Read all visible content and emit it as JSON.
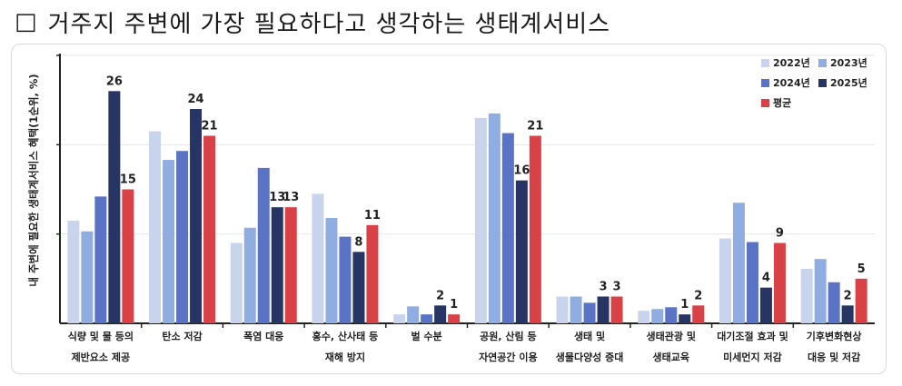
{
  "heading": {
    "box": "□",
    "text": "거주지 주변에 가장 필요하다고 생각하는 생태계서비스"
  },
  "chart_data": {
    "type": "bar",
    "title": "",
    "ylabel": "내 주변에 필요한 생태계서비스 혜택(1순위, %)",
    "ylim": [
      0,
      30
    ],
    "gridlines": [
      10,
      20,
      30
    ],
    "legend_position": "top-right",
    "categories": [
      [
        "식량 및 물 등의",
        "제반요소 제공"
      ],
      [
        "탄소 저감"
      ],
      [
        "폭염 대응"
      ],
      [
        "홍수, 산사태 등",
        "재해 방지"
      ],
      [
        "벌 수분"
      ],
      [
        "공원, 산림 등",
        "자연공간 이용"
      ],
      [
        "생태 및",
        "생물다양성 증대"
      ],
      [
        "생태관광 및",
        "생태교육"
      ],
      [
        "대기조절 효과 및",
        "미세먼지 저감"
      ],
      [
        "기후변화현상",
        "대응 및 저감"
      ]
    ],
    "series": [
      {
        "name": "2022년",
        "color": "#c8d3ec",
        "values": [
          11.5,
          21.5,
          9,
          14.5,
          1,
          23,
          3,
          1.4,
          9.5,
          6.1
        ]
      },
      {
        "name": "2023년",
        "color": "#8fade0",
        "values": [
          10.3,
          18.3,
          10.7,
          11.8,
          1.9,
          23.5,
          3,
          1.6,
          13.5,
          7.2
        ]
      },
      {
        "name": "2024년",
        "color": "#5a73c4",
        "values": [
          14.2,
          19.3,
          17.4,
          9.7,
          1,
          21.3,
          2.3,
          1.8,
          9.1,
          4.6
        ]
      },
      {
        "name": "2025년",
        "color": "#263564",
        "values": [
          26,
          24,
          13,
          8,
          2,
          16,
          3,
          1,
          4,
          2
        ]
      },
      {
        "name": "평균",
        "color": "#d84145",
        "values": [
          15,
          21,
          13,
          11,
          1,
          21,
          3,
          2,
          9,
          5
        ]
      }
    ],
    "data_labels": {
      "2025년": [
        "26",
        "24",
        "13",
        "8",
        "2",
        "16",
        "3",
        "1",
        "4",
        "2"
      ],
      "평균": [
        "15",
        "21",
        "13",
        "11",
        "1",
        "21",
        "3",
        "2",
        "9",
        "5"
      ]
    }
  }
}
